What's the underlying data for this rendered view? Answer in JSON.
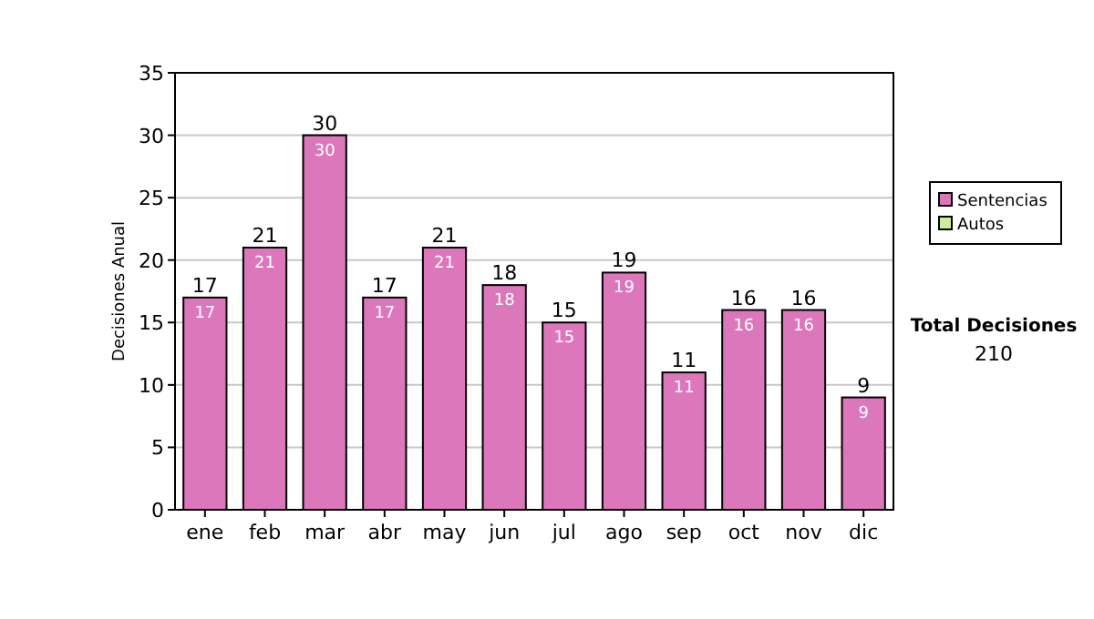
{
  "chart_data": {
    "type": "bar",
    "ylabel": "Decisiones Anual",
    "categories": [
      "ene",
      "feb",
      "mar",
      "abr",
      "may",
      "jun",
      "jul",
      "ago",
      "sep",
      "oct",
      "nov",
      "dic"
    ],
    "series": [
      {
        "name": "Sentencias",
        "color": "#dd77bb",
        "values": [
          17,
          21,
          30,
          17,
          21,
          18,
          15,
          19,
          11,
          16,
          16,
          9
        ],
        "value_labels": [
          "17",
          "21",
          "30",
          "17",
          "21",
          "18",
          "15",
          "19",
          "11",
          "16",
          "16",
          "9"
        ]
      },
      {
        "name": "Autos",
        "color": "#ccee99",
        "values": [
          0,
          0,
          0,
          0,
          0,
          0,
          0,
          0,
          0,
          0,
          0,
          0
        ]
      }
    ],
    "stacked": true,
    "totals": [
      "17",
      "21",
      "30",
      "17",
      "21",
      "18",
      "15",
      "19",
      "11",
      "16",
      "16",
      "9"
    ],
    "ylim": [
      0,
      35
    ],
    "yticks": [
      0,
      5,
      10,
      15,
      20,
      25,
      30,
      35
    ],
    "grid": "y",
    "legend": "right",
    "annotations": [
      "Total Decisiones",
      "210"
    ]
  }
}
